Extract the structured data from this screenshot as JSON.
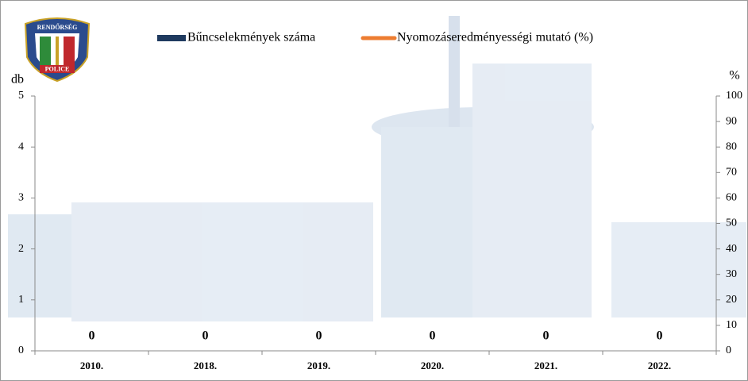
{
  "chart_data": {
    "type": "bar",
    "logo_top": "RENDŐRSÉG",
    "logo_bottom": "POLICE",
    "categories": [
      "2010.",
      "2018.",
      "2019.",
      "2020.",
      "2021.",
      "2022."
    ],
    "series": [
      {
        "name": "Bűncselekmények száma",
        "color": "#1f3a5f",
        "type": "bar",
        "values": [
          0,
          0,
          0,
          0,
          0,
          0
        ]
      },
      {
        "name": "Nyomozáseredményességi mutató (%)",
        "color": "#ed7d31",
        "type": "line",
        "axis": "y2",
        "values": [
          null,
          null,
          null,
          null,
          null,
          null
        ]
      }
    ],
    "ylabel": "db",
    "y2label": "%",
    "ylim": [
      0,
      5
    ],
    "yticks": [
      0,
      1,
      2,
      3,
      4,
      5
    ],
    "y2lim": [
      0,
      100
    ],
    "y2ticks": [
      0,
      10,
      20,
      30,
      40,
      50,
      60,
      70,
      80,
      90,
      100
    ]
  }
}
